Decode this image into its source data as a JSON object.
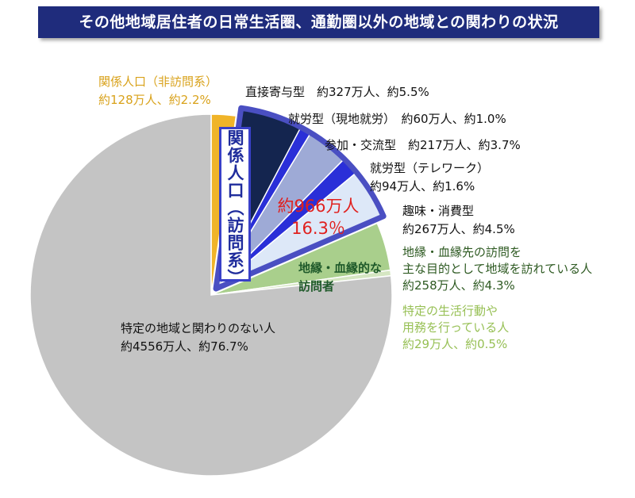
{
  "title": "その他地域居住者の日常生活圏、通勤圏以外の地域との関わりの状況",
  "group_label": "関係人口（訪問系）",
  "group_total_count": "約966万人",
  "group_total_pct": "16.3％",
  "labels": {
    "non_visit_1": "関係人口（非訪問系）",
    "non_visit_2": "約128万人、約2.2%",
    "direct": "直接寄与型　約327万人、約5.5%",
    "local_work": "就労型（現地就労）　約60万人、約1.0%",
    "participation": "参加・交流型　約217万人、約3.7%",
    "telework_1": "就労型（テレワーク）",
    "telework_2": "約94万人、約1.6%",
    "hobby_1": "趣味・消費型",
    "hobby_2": "約267万人、約4.5%",
    "kin_visitor_1": "地縁・血縁的な",
    "kin_visitor_2": "訪問者",
    "kin_1": "地縁・血縁先の訪問を",
    "kin_2": "主な目的として地域を訪れている人",
    "kin_3": "約258万人、約4.3%",
    "specific_1": "特定の生活行動や",
    "specific_2": "用務を行っている人",
    "specific_3": "約29万人、約0.5%",
    "none_1": "特定の地域と関わりのない人",
    "none_2": "約4556万人、約76.7%"
  },
  "chart_data": {
    "type": "pie",
    "title": "その他地域居住者の日常生活圏、通勤圏以外の地域との関わりの状況",
    "start_angle_deg": 0,
    "direction": "clockwise",
    "slices": [
      {
        "label": "関係人口（非訪問系）",
        "value_man": 128,
        "percent": 2.2,
        "color": "#f0b429"
      },
      {
        "label": "直接寄与型",
        "value_man": 327,
        "percent": 5.5,
        "color": "#14254f"
      },
      {
        "label": "就労型（現地就労）",
        "value_man": 60,
        "percent": 1.0,
        "color": "#2a2fd8"
      },
      {
        "label": "参加・交流型",
        "value_man": 217,
        "percent": 3.7,
        "color": "#9eaad6"
      },
      {
        "label": "就労型（テレワーク）",
        "value_man": 94,
        "percent": 1.6,
        "color": "#2a2fd8"
      },
      {
        "label": "趣味・消費型",
        "value_man": 267,
        "percent": 4.5,
        "color": "#dde8f8"
      },
      {
        "label": "地縁・血縁先の訪問を主な目的として地域を訪れている人",
        "value_man": 258,
        "percent": 4.3,
        "color": "#a9cf8c"
      },
      {
        "label": "特定の生活行動や用務を行っている人",
        "value_man": 29,
        "percent": 0.5,
        "color": "#d5e6c2"
      },
      {
        "label": "特定の地域と関わりのない人",
        "value_man": 4556,
        "percent": 76.7,
        "color": "#c4c4c4"
      }
    ],
    "highlight_group": {
      "label": "関係人口（訪問系）",
      "slices": [
        1,
        2,
        3,
        4,
        5
      ],
      "value_man": 966,
      "percent": 16.3,
      "outline_color": "#4a4fc2",
      "exploded": true
    }
  }
}
